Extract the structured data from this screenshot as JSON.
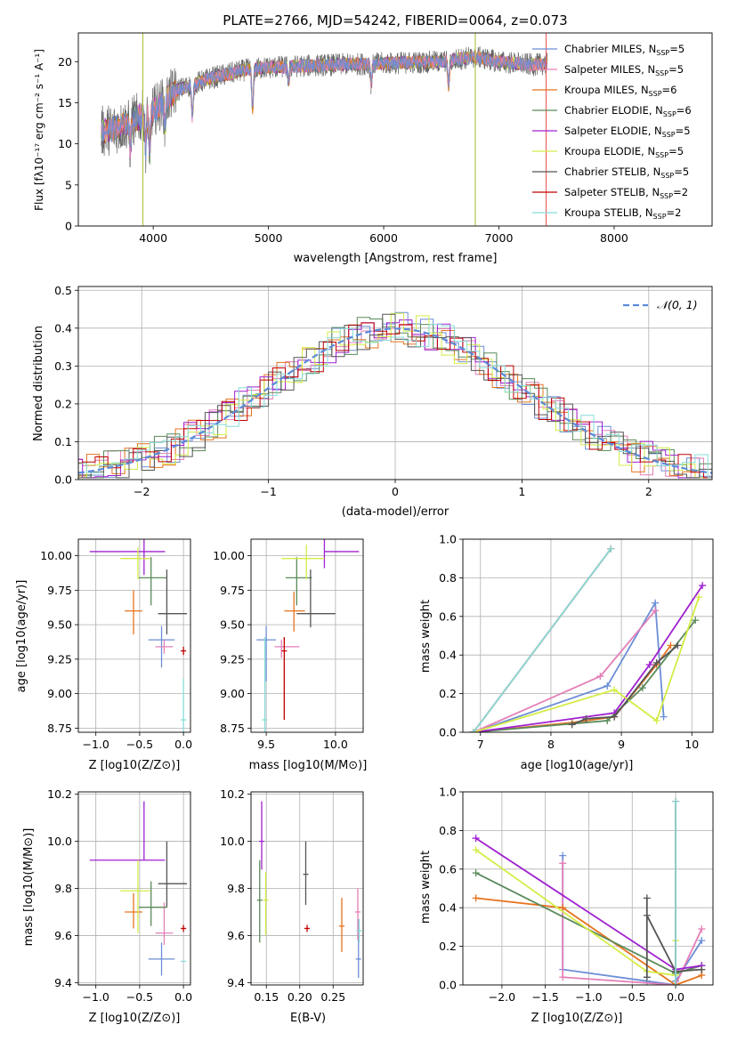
{
  "colors": {
    "Chabrier MILES": "#6c8ed6",
    "Salpeter MILES": "#e37fb7",
    "Kroupa MILES": "#e6731f",
    "Chabrier ELODIE": "#5a8a5a",
    "Salpeter ELODIE": "#a020d0",
    "Kroupa ELODIE": "#d4ec46",
    "Chabrier STELIB": "#555555",
    "Salpeter STELIB": "#c00000",
    "Kroupa STELIB": "#86dcd8",
    "normal": "#5b8bd9"
  },
  "chart_data": [
    {
      "id": "spectrum",
      "type": "line",
      "title": "PLATE=2766, MJD=54242, FIBERID=0064, z=0.073",
      "xlabel": "wavelength [Angstrom, rest frame]",
      "ylabel": "Flux [fλ10⁻¹⁷ erg cm⁻² s⁻¹ A⁻¹]",
      "xlim": [
        3350,
        8850
      ],
      "ylim": [
        0,
        23.5
      ],
      "xticks": [
        4000,
        5000,
        6000,
        7000,
        8000
      ],
      "yticks": [
        0,
        5,
        10,
        15,
        20
      ],
      "grid": false,
      "legend_position": "right",
      "legend": [
        "Chabrier MILES, N_SSP=5",
        "Salpeter MILES, N_SSP=5",
        "Kroupa MILES, N_SSP=6",
        "Chabrier ELODIE, N_SSP=6",
        "Salpeter ELODIE, N_SSP=5",
        "Kroupa ELODIE, N_SSP=5",
        "Chabrier STELIB, N_SSP=5",
        "Salpeter STELIB, N_SSP=2",
        "Kroupa STELIB, N_SSP=2"
      ],
      "continuum_trend": [
        [
          3550,
          11.5
        ],
        [
          3700,
          12.0
        ],
        [
          3850,
          13.0
        ],
        [
          4000,
          14.0
        ],
        [
          4200,
          16.5
        ],
        [
          4500,
          18.0
        ],
        [
          4800,
          19.0
        ],
        [
          5000,
          19.3
        ],
        [
          5500,
          19.6
        ],
        [
          6000,
          19.8
        ],
        [
          6500,
          20.0
        ],
        [
          6800,
          20.6
        ],
        [
          7000,
          20.0
        ],
        [
          7300,
          19.6
        ],
        [
          7420,
          19.8
        ]
      ],
      "data_span": [
        3550,
        7420
      ]
    },
    {
      "id": "residuals",
      "type": "histogram",
      "xlabel": "(data-model)/error",
      "ylabel": "Normed distribution",
      "xlim": [
        -2.5,
        2.5
      ],
      "ylim": [
        0,
        0.51
      ],
      "xticks": [
        -2,
        -1,
        0,
        1,
        2
      ],
      "yticks": [
        0.0,
        0.1,
        0.2,
        0.3,
        0.4,
        0.5
      ],
      "grid": true,
      "legend_position": "top-right",
      "legend": [
        "N(0,1)"
      ],
      "curve": "normal pdf, mean 0, sigma 1"
    },
    {
      "id": "age-vs-Z",
      "type": "errorbar",
      "xlabel": "Z [log10(Z/Z⊙)]",
      "ylabel": "age  [log10(age/yr)]",
      "xlim": [
        -1.2,
        0.08
      ],
      "ylim": [
        8.72,
        10.12
      ],
      "xticks": [
        -1.0,
        -0.5,
        0.0
      ],
      "yticks": [
        8.75,
        9.0,
        9.25,
        9.5,
        9.75,
        10.0
      ],
      "grid": true,
      "points": [
        {
          "model": "Chabrier MILES",
          "x": -0.25,
          "y": 9.39,
          "xerr": [
            0.15,
            0.15
          ],
          "yerr": [
            0.2,
            0.1
          ]
        },
        {
          "model": "Salpeter MILES",
          "x": -0.22,
          "y": 9.34,
          "xerr": [
            0.1,
            0.1
          ],
          "yerr": [
            0.05,
            0.05
          ]
        },
        {
          "model": "Kroupa MILES",
          "x": -0.57,
          "y": 9.6,
          "xerr": [
            0.1,
            0.1
          ],
          "yerr": [
            0.17,
            0.15
          ]
        },
        {
          "model": "Chabrier ELODIE",
          "x": -0.37,
          "y": 9.84,
          "xerr": [
            0.14,
            0.18
          ],
          "yerr": [
            0.2,
            0.15
          ]
        },
        {
          "model": "Salpeter ELODIE",
          "x": -0.45,
          "y": 10.03,
          "xerr": [
            0.62,
            0.24
          ],
          "yerr": [
            0.17,
            0.1
          ]
        },
        {
          "model": "Kroupa ELODIE",
          "x": -0.52,
          "y": 9.98,
          "xerr": [
            0.2,
            0.14
          ],
          "yerr": [
            0.15,
            0.08
          ]
        },
        {
          "model": "Chabrier STELIB",
          "x": -0.19,
          "y": 9.58,
          "xerr": [
            0.1,
            0.23
          ],
          "yerr": [
            0.15,
            0.32
          ]
        },
        {
          "model": "Salpeter STELIB",
          "x": 0.0,
          "y": 9.31,
          "xerr": [
            0.0,
            0.0
          ],
          "yerr": [
            0.03,
            0.03
          ]
        },
        {
          "model": "Kroupa STELIB",
          "x": 0.0,
          "y": 8.81,
          "xerr": [
            0.0,
            0.0
          ],
          "yerr": [
            0.4,
            0.3
          ]
        }
      ]
    },
    {
      "id": "age-vs-mass",
      "type": "errorbar",
      "xlabel": "mass [log10(M/M⊙)]",
      "ylabel": "",
      "xlim": [
        9.39,
        10.2
      ],
      "ylim": [
        8.72,
        10.12
      ],
      "xticks": [
        9.5,
        10.0
      ],
      "yticks": [
        8.75,
        9.0,
        9.25,
        9.5,
        9.75,
        10.0
      ],
      "grid": true,
      "points": [
        {
          "model": "Chabrier MILES",
          "x": 9.5,
          "y": 9.39,
          "xerr": [
            0.07,
            0.07
          ],
          "yerr": [
            0.3,
            0.1
          ]
        },
        {
          "model": "Salpeter MILES",
          "x": 9.61,
          "y": 9.34,
          "xerr": [
            0.05,
            0.13
          ],
          "yerr": [
            0.08,
            0.05
          ]
        },
        {
          "model": "Kroupa MILES",
          "x": 9.7,
          "y": 9.6,
          "xerr": [
            0.07,
            0.08
          ],
          "yerr": [
            0.15,
            0.14
          ]
        },
        {
          "model": "Chabrier ELODIE",
          "x": 9.72,
          "y": 9.84,
          "xerr": [
            0.08,
            0.11
          ],
          "yerr": [
            0.2,
            0.15
          ]
        },
        {
          "model": "Salpeter ELODIE",
          "x": 9.92,
          "y": 10.03,
          "xerr": [
            0.0,
            0.25
          ],
          "yerr": [
            0.12,
            0.12
          ]
        },
        {
          "model": "Kroupa ELODIE",
          "x": 9.79,
          "y": 9.98,
          "xerr": [
            0.18,
            0.13
          ],
          "yerr": [
            0.15,
            0.1
          ]
        },
        {
          "model": "Chabrier STELIB",
          "x": 9.82,
          "y": 9.58,
          "xerr": [
            0.1,
            0.18
          ],
          "yerr": [
            0.1,
            0.32
          ]
        },
        {
          "model": "Salpeter STELIB",
          "x": 9.63,
          "y": 9.31,
          "xerr": [
            0.0,
            0.0
          ],
          "yerr": [
            0.5,
            0.1
          ]
        },
        {
          "model": "Kroupa STELIB",
          "x": 9.49,
          "y": 8.81,
          "xerr": [
            0.0,
            0.0
          ],
          "yerr": [
            0.1,
            0.6
          ]
        }
      ]
    },
    {
      "id": "weight-vs-age",
      "type": "line",
      "xlabel": "age  [log10(age/yr)]",
      "ylabel": "mass weight",
      "xlim": [
        6.75,
        10.3
      ],
      "ylim": [
        0,
        1.0
      ],
      "xticks": [
        7,
        8,
        9,
        10
      ],
      "yticks": [
        0.0,
        0.2,
        0.4,
        0.6,
        0.8,
        1.0
      ],
      "grid": true,
      "series": [
        {
          "model": "Chabrier MILES",
          "x": [
            6.9,
            8.8,
            9.48,
            9.6
          ],
          "y": [
            0.0,
            0.24,
            0.67,
            0.08
          ]
        },
        {
          "model": "Salpeter MILES",
          "x": [
            6.9,
            8.7,
            9.48
          ],
          "y": [
            0.0,
            0.29,
            0.63
          ]
        },
        {
          "model": "Kroupa MILES",
          "x": [
            6.9,
            8.3,
            8.9,
            9.5,
            9.7
          ],
          "y": [
            0.0,
            0.05,
            0.08,
            0.35,
            0.45
          ]
        },
        {
          "model": "Chabrier ELODIE",
          "x": [
            6.9,
            8.8,
            9.3,
            10.05
          ],
          "y": [
            0.0,
            0.06,
            0.23,
            0.58
          ]
        },
        {
          "model": "Salpeter ELODIE",
          "x": [
            6.9,
            8.9,
            9.4,
            10.15
          ],
          "y": [
            0.0,
            0.1,
            0.35,
            0.76
          ]
        },
        {
          "model": "Kroupa ELODIE",
          "x": [
            6.9,
            8.9,
            9.5,
            10.1
          ],
          "y": [
            0.0,
            0.22,
            0.06,
            0.7
          ]
        },
        {
          "model": "Chabrier STELIB",
          "x": [
            8.3,
            8.5,
            8.9,
            9.5,
            9.8
          ],
          "y": [
            0.04,
            0.07,
            0.08,
            0.36,
            0.45
          ]
        },
        {
          "model": "Salpeter STELIB",
          "x": [
            6.9,
            8.85
          ],
          "y": [
            0.0,
            0.95
          ]
        },
        {
          "model": "Kroupa STELIB",
          "x": [
            6.9,
            8.85
          ],
          "y": [
            0.0,
            0.95
          ]
        }
      ]
    },
    {
      "id": "mass-vs-Z",
      "type": "errorbar",
      "xlabel": "Z [log10(Z/Z⊙)]",
      "ylabel": "mass [log10(M/M⊙)]",
      "xlim": [
        -1.2,
        0.08
      ],
      "ylim": [
        9.39,
        10.21
      ],
      "xticks": [
        -1.0,
        -0.5,
        0.0
      ],
      "yticks": [
        9.4,
        9.6,
        9.8,
        10.0,
        10.2
      ],
      "grid": true,
      "points": [
        {
          "model": "Chabrier MILES",
          "x": -0.25,
          "y": 9.5,
          "xerr": [
            0.15,
            0.15
          ],
          "yerr": [
            0.07,
            0.07
          ]
        },
        {
          "model": "Salpeter MILES",
          "x": -0.22,
          "y": 9.61,
          "xerr": [
            0.1,
            0.1
          ],
          "yerr": [
            0.05,
            0.13
          ]
        },
        {
          "model": "Kroupa MILES",
          "x": -0.57,
          "y": 9.7,
          "xerr": [
            0.1,
            0.1
          ],
          "yerr": [
            0.07,
            0.08
          ]
        },
        {
          "model": "Chabrier ELODIE",
          "x": -0.37,
          "y": 9.72,
          "xerr": [
            0.14,
            0.18
          ],
          "yerr": [
            0.08,
            0.11
          ]
        },
        {
          "model": "Salpeter ELODIE",
          "x": -0.45,
          "y": 9.92,
          "xerr": [
            0.62,
            0.24
          ],
          "yerr": [
            0.0,
            0.25
          ]
        },
        {
          "model": "Kroupa ELODIE",
          "x": -0.52,
          "y": 9.79,
          "xerr": [
            0.2,
            0.14
          ],
          "yerr": [
            0.18,
            0.13
          ]
        },
        {
          "model": "Chabrier STELIB",
          "x": -0.19,
          "y": 9.82,
          "xerr": [
            0.1,
            0.23
          ],
          "yerr": [
            0.1,
            0.18
          ]
        },
        {
          "model": "Salpeter STELIB",
          "x": 0.0,
          "y": 9.63,
          "xerr": [
            0.0,
            0.0
          ],
          "yerr": [
            0.015,
            0.015
          ]
        },
        {
          "model": "Kroupa STELIB",
          "x": 0.0,
          "y": 9.49,
          "xerr": [
            0.0,
            0.0
          ],
          "yerr": [
            0.0,
            0.0
          ]
        }
      ]
    },
    {
      "id": "mass-vs-ebv",
      "type": "errorbar",
      "xlabel": "E(B-V)",
      "ylabel": "",
      "xlim": [
        0.127,
        0.295
      ],
      "ylim": [
        9.39,
        10.21
      ],
      "xticks": [
        0.15,
        0.2,
        0.25
      ],
      "yticks": [
        9.4,
        9.6,
        9.8,
        10.0,
        10.2
      ],
      "grid": true,
      "points": [
        {
          "model": "Chabrier MILES",
          "x": 0.288,
          "y": 9.5,
          "xerr": [
            0.0,
            0.0
          ],
          "yerr": [
            0.08,
            0.17
          ]
        },
        {
          "model": "Salpeter MILES",
          "x": 0.287,
          "y": 9.7,
          "xerr": [
            0.0,
            0.0
          ],
          "yerr": [
            0.12,
            0.1
          ]
        },
        {
          "model": "Kroupa MILES",
          "x": 0.263,
          "y": 9.64,
          "xerr": [
            0.0,
            0.0
          ],
          "yerr": [
            0.11,
            0.12
          ]
        },
        {
          "model": "Chabrier ELODIE",
          "x": 0.14,
          "y": 9.75,
          "xerr": [
            0.0,
            0.0
          ],
          "yerr": [
            0.18,
            0.17
          ]
        },
        {
          "model": "Salpeter ELODIE",
          "x": 0.143,
          "y": 10.0,
          "xerr": [
            0.0,
            0.0
          ],
          "yerr": [
            0.12,
            0.17
          ]
        },
        {
          "model": "Kroupa ELODIE",
          "x": 0.149,
          "y": 9.75,
          "xerr": [
            0.0,
            0.0
          ],
          "yerr": [
            0.15,
            0.12
          ]
        },
        {
          "model": "Chabrier STELIB",
          "x": 0.209,
          "y": 9.86,
          "xerr": [
            0.0,
            0.0
          ],
          "yerr": [
            0.13,
            0.14
          ]
        },
        {
          "model": "Salpeter STELIB",
          "x": 0.211,
          "y": 9.63,
          "xerr": [
            0.0,
            0.0
          ],
          "yerr": [
            0.015,
            0.015
          ]
        },
        {
          "model": "Kroupa STELIB",
          "x": 0.289,
          "y": 9.62,
          "xerr": [
            0.0,
            0.0
          ],
          "yerr": [
            0.05,
            0.05
          ]
        }
      ]
    },
    {
      "id": "weight-vs-Z",
      "type": "line",
      "xlabel": "Z [log10(Z/Z⊙)]",
      "ylabel": "mass weight",
      "xlim": [
        -2.45,
        0.43
      ],
      "ylim": [
        0,
        1.0
      ],
      "xticks": [
        -2.0,
        -1.5,
        -1.0,
        -0.5,
        0.0
      ],
      "yticks": [
        0.0,
        0.2,
        0.4,
        0.6,
        0.8,
        1.0
      ],
      "grid": true,
      "series": [
        {
          "model": "Chabrier MILES",
          "x": [
            -1.3,
            -1.3,
            -0.33,
            0.0,
            0.0,
            0.3
          ],
          "y": [
            0.67,
            0.08,
            0.02,
            0.0,
            0.02,
            0.23
          ]
        },
        {
          "model": "Salpeter MILES",
          "x": [
            -1.3,
            -1.3,
            0.0,
            0.3
          ],
          "y": [
            0.63,
            0.04,
            0.0,
            0.29
          ]
        },
        {
          "model": "Kroupa MILES",
          "x": [
            -2.3,
            -1.3,
            0.0,
            0.3,
            0.3
          ],
          "y": [
            0.45,
            0.4,
            0.0,
            0.05,
            0.08
          ]
        },
        {
          "model": "Chabrier ELODIE",
          "x": [
            -2.3,
            0.0,
            0.3
          ],
          "y": [
            0.58,
            0.06,
            0.1
          ]
        },
        {
          "model": "Salpeter ELODIE",
          "x": [
            -2.3,
            0.0,
            0.3
          ],
          "y": [
            0.76,
            0.08,
            0.1
          ]
        },
        {
          "model": "Kroupa ELODIE",
          "x": [
            -2.3,
            -0.33,
            0.0,
            0.0
          ],
          "y": [
            0.7,
            0.07,
            0.05,
            0.23
          ]
        },
        {
          "model": "Chabrier STELIB",
          "x": [
            -0.33,
            -0.33,
            -0.33,
            0.0,
            0.3
          ],
          "y": [
            0.04,
            0.45,
            0.36,
            0.07,
            0.08
          ]
        },
        {
          "model": "Salpeter STELIB",
          "x": [
            0.0,
            0.0
          ],
          "y": [
            0.0,
            0.95
          ]
        },
        {
          "model": "Kroupa STELIB",
          "x": [
            0.0,
            0.0
          ],
          "y": [
            0.0,
            0.95
          ]
        }
      ]
    }
  ]
}
